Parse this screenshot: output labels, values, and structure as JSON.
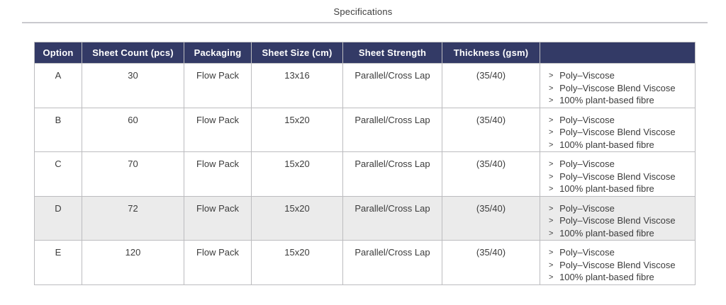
{
  "page": {
    "title": "Specifications"
  },
  "colors": {
    "header_bg": "#333a66",
    "header_text": "#ffffff",
    "highlight_row_bg": "#ebebeb",
    "border": "#bcbcbf",
    "rule": "#c9c9ce"
  },
  "bullet_char": ">",
  "table": {
    "headers": {
      "option": "Option",
      "sheet_count": "Sheet Count (pcs)",
      "packaging": "Packaging",
      "sheet_size": "Sheet Size (cm)",
      "sheet_strength": "Sheet Strength",
      "thickness": "Thickness (gsm)",
      "materials": ""
    },
    "rows": [
      {
        "option": "A",
        "sheet_count": "30",
        "packaging": "Flow Pack",
        "sheet_size": "13x16",
        "sheet_strength": "Parallel/Cross Lap",
        "thickness": "(35/40)",
        "materials": [
          "Poly–Viscose",
          "Poly–Viscose Blend Viscose",
          "100% plant-based fibre"
        ],
        "highlighted": false
      },
      {
        "option": "B",
        "sheet_count": "60",
        "packaging": "Flow Pack",
        "sheet_size": "15x20",
        "sheet_strength": "Parallel/Cross Lap",
        "thickness": "(35/40)",
        "materials": [
          "Poly–Viscose",
          "Poly–Viscose Blend Viscose",
          "100% plant-based fibre"
        ],
        "highlighted": false
      },
      {
        "option": "C",
        "sheet_count": "70",
        "packaging": "Flow Pack",
        "sheet_size": "15x20",
        "sheet_strength": "Parallel/Cross Lap",
        "thickness": "(35/40)",
        "materials": [
          "Poly–Viscose",
          "Poly–Viscose Blend Viscose",
          "100% plant-based fibre"
        ],
        "highlighted": false
      },
      {
        "option": "D",
        "sheet_count": "72",
        "packaging": "Flow Pack",
        "sheet_size": "15x20",
        "sheet_strength": "Parallel/Cross Lap",
        "thickness": "(35/40)",
        "materials": [
          "Poly–Viscose",
          "Poly–Viscose Blend Viscose",
          "100% plant-based fibre"
        ],
        "highlighted": true
      },
      {
        "option": "E",
        "sheet_count": "120",
        "packaging": "Flow Pack",
        "sheet_size": "15x20",
        "sheet_strength": "Parallel/Cross Lap",
        "thickness": "(35/40)",
        "materials": [
          "Poly–Viscose",
          "Poly–Viscose Blend Viscose",
          "100% plant-based fibre"
        ],
        "highlighted": false
      }
    ]
  }
}
